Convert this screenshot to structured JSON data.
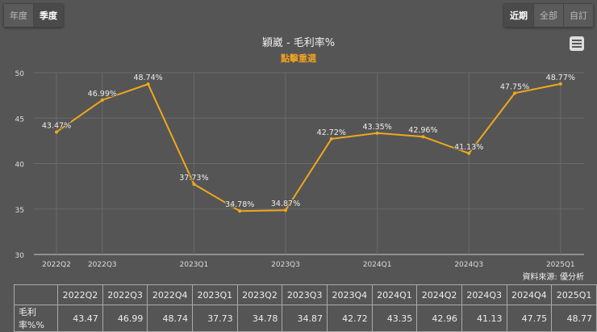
{
  "left_buttons": [
    {
      "label": "年度",
      "active": false
    },
    {
      "label": "季度",
      "active": true
    }
  ],
  "right_buttons": [
    {
      "label": "近期",
      "active": true
    },
    {
      "label": "全部",
      "active": false
    },
    {
      "label": "自訂",
      "active": false
    }
  ],
  "menu_icon": "hamburger-menu-icon",
  "source": "資料來源: 優分析",
  "chart_data": {
    "type": "line",
    "title": "穎崴 - 毛利率%",
    "subtitle": "點擊重選",
    "categories": [
      "2022Q2",
      "2022Q3",
      "2022Q4",
      "2023Q1",
      "2023Q2",
      "2023Q3",
      "2023Q4",
      "2024Q1",
      "2024Q2",
      "2024Q3",
      "2024Q4",
      "2025Q1"
    ],
    "x_tick_labels": [
      "2022Q2",
      "2022Q3",
      "2023Q1",
      "2023Q3",
      "2024Q1",
      "2024Q3",
      "2025Q1"
    ],
    "series": [
      {
        "name": "毛利率%",
        "color": "#f0a81c",
        "values": [
          43.47,
          46.99,
          48.74,
          37.73,
          34.78,
          34.87,
          42.72,
          43.35,
          42.96,
          41.13,
          47.75,
          48.77
        ]
      }
    ],
    "ylim": [
      30,
      50
    ],
    "yticks": [
      30,
      35,
      40,
      45,
      50
    ],
    "grid": true
  },
  "table": {
    "row_label": "毛利率%%"
  }
}
